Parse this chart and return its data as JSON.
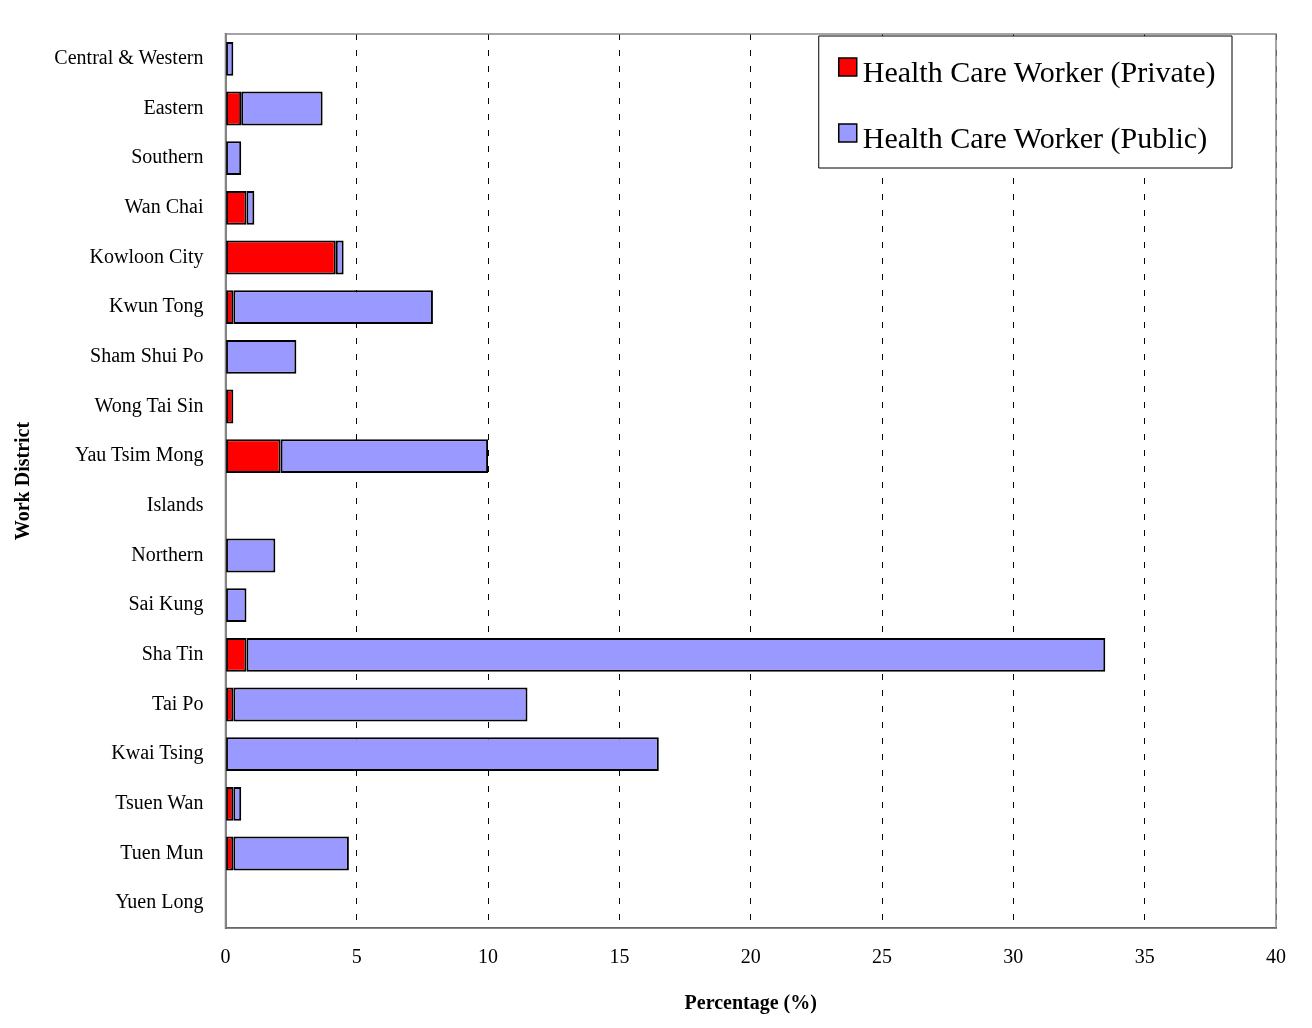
{
  "chart_data": {
    "type": "bar",
    "orientation": "horizontal",
    "stacked": true,
    "xlabel": "Percentage (%)",
    "ylabel": "Work District",
    "categories": [
      "Central & Western",
      "Eastern",
      "Southern",
      "Wan Chai",
      "Kowloon City",
      "Kwun Tong",
      "Sham Shui Po",
      "Wong Tai Sin",
      "Yau Tsim Mong",
      "Islands",
      "Northern",
      "Sai Kung",
      "Sha Tin",
      "Tai Po",
      "Kwai Tsing",
      "Tsuen Wan",
      "Tuen Mun",
      "Yuen Long"
    ],
    "series": [
      {
        "name": "Health Care Worker (Private)",
        "color": "#ff0000",
        "values": [
          0,
          0.6,
          0,
          0.8,
          4.2,
          0.3,
          0,
          0.3,
          2.1,
          0,
          0,
          0,
          0.8,
          0.3,
          0,
          0.3,
          0.3,
          0
        ]
      },
      {
        "name": "Health Care Worker (Public)",
        "color": "#9999ff",
        "values": [
          0.3,
          3.1,
          0.6,
          0.3,
          0.3,
          7.6,
          2.7,
          0,
          7.9,
          0,
          1.9,
          0.8,
          32.7,
          11.2,
          16.5,
          0.3,
          4.4,
          0
        ]
      }
    ],
    "xlim": [
      0,
      40
    ],
    "xticks": [
      0,
      5,
      10,
      15,
      20,
      25,
      30,
      35,
      40
    ],
    "grid": "x",
    "legend": "top right"
  }
}
